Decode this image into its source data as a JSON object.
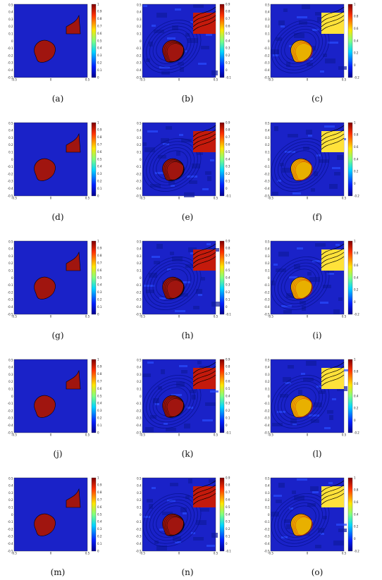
{
  "figure": {
    "columns": [
      {
        "ticks_y": [
          "0.5",
          "0.4",
          "0.3",
          "0.2",
          "0.1",
          "0",
          "-0.1",
          "-0.2",
          "-0.3",
          "-0.4",
          "-0.5"
        ],
        "ticks_x": [
          "-0.5",
          "0",
          "0.5"
        ],
        "cbar": [
          "1",
          "0.9",
          "0.8",
          "0.7",
          "0.6",
          "0.5",
          "0.4",
          "0.3",
          "0.2",
          "0.1",
          "0"
        ]
      },
      {
        "ticks_y": [
          "0.5",
          "0.4",
          "0.3",
          "0.2",
          "0.1",
          "0",
          "-0.1",
          "-0.2",
          "-0.3",
          "-0.4",
          "-0.5"
        ],
        "ticks_x": [
          "-0.5",
          "0",
          "0.5"
        ],
        "cbar": [
          "0.9",
          "0.8",
          "0.7",
          "0.6",
          "0.5",
          "0.4",
          "0.3",
          "0.2",
          "0.1",
          "0",
          "-0.1"
        ]
      },
      {
        "ticks_y": [
          "0.5",
          "0.4",
          "0.3",
          "0.2",
          "0.1",
          "0",
          "-0.1",
          "-0.2",
          "-0.3",
          "-0.4",
          "-0.5"
        ],
        "ticks_x": [
          "-0.5",
          "0",
          "0.5"
        ],
        "cbar": [
          "1",
          "0.8",
          "0.6",
          "0.4",
          "0.2",
          "0",
          "-0.2"
        ]
      }
    ],
    "panels": [
      {
        "caption": "(a)",
        "kind": "truth"
      },
      {
        "caption": "(b)",
        "kind": "recon-soft"
      },
      {
        "caption": "(c)",
        "kind": "recon-hot"
      },
      {
        "caption": "(d)",
        "kind": "truth"
      },
      {
        "caption": "(e)",
        "kind": "recon-soft"
      },
      {
        "caption": "(f)",
        "kind": "recon-hot"
      },
      {
        "caption": "(g)",
        "kind": "truth"
      },
      {
        "caption": "(h)",
        "kind": "recon-soft"
      },
      {
        "caption": "(i)",
        "kind": "recon-hot"
      },
      {
        "caption": "(j)",
        "kind": "truth"
      },
      {
        "caption": "(k)",
        "kind": "recon-soft"
      },
      {
        "caption": "(l)",
        "kind": "recon-hot"
      },
      {
        "caption": "(m)",
        "kind": "truth"
      },
      {
        "caption": "(n)",
        "kind": "recon-soft"
      },
      {
        "caption": "(o)",
        "kind": "recon-hot"
      }
    ],
    "colors": {
      "background": "#1a22c8",
      "shape": "#a0150f",
      "outline": "#000000"
    }
  }
}
